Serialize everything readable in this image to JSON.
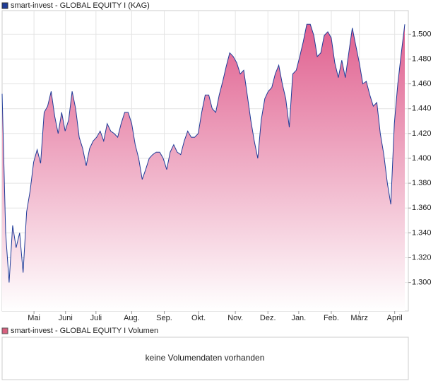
{
  "chart_data": {
    "type": "area",
    "series": [
      {
        "name": "smart-invest - GLOBAL EQUITY I (KAG)",
        "color": "#1f3c99",
        "fill": "#e0608f",
        "values": [
          1.452,
          1.34,
          1.3,
          1.346,
          1.328,
          1.34,
          1.308,
          1.357,
          1.374,
          1.397,
          1.407,
          1.396,
          1.437,
          1.442,
          1.454,
          1.434,
          1.42,
          1.437,
          1.422,
          1.431,
          1.454,
          1.44,
          1.417,
          1.408,
          1.394,
          1.408,
          1.414,
          1.417,
          1.422,
          1.414,
          1.428,
          1.422,
          1.42,
          1.417,
          1.428,
          1.437,
          1.437,
          1.428,
          1.411,
          1.4,
          1.383,
          1.391,
          1.4,
          1.403,
          1.405,
          1.405,
          1.4,
          1.391,
          1.405,
          1.411,
          1.405,
          1.403,
          1.414,
          1.422,
          1.417,
          1.417,
          1.42,
          1.437,
          1.451,
          1.451,
          1.44,
          1.437,
          1.451,
          1.462,
          1.474,
          1.485,
          1.482,
          1.477,
          1.468,
          1.471,
          1.451,
          1.431,
          1.414,
          1.4,
          1.431,
          1.448,
          1.454,
          1.457,
          1.468,
          1.475,
          1.46,
          1.448,
          1.425,
          1.468,
          1.471,
          1.482,
          1.494,
          1.508,
          1.508,
          1.499,
          1.482,
          1.485,
          1.499,
          1.502,
          1.497,
          1.477,
          1.465,
          1.479,
          1.465,
          1.485,
          1.505,
          1.491,
          1.477,
          1.46,
          1.462,
          1.451,
          1.442,
          1.445,
          1.42,
          1.403,
          1.38,
          1.363,
          1.428,
          1.46,
          1.485,
          1.508
        ]
      }
    ],
    "xlim": [
      0,
      116
    ],
    "xticks": [
      {
        "value": 9.1,
        "label": "Mai"
      },
      {
        "value": 18.1,
        "label": "Juni"
      },
      {
        "value": 26.8,
        "label": "Juli"
      },
      {
        "value": 37.0,
        "label": "Aug."
      },
      {
        "value": 46.3,
        "label": "Sep."
      },
      {
        "value": 56.1,
        "label": "Okt."
      },
      {
        "value": 66.6,
        "label": "Nov."
      },
      {
        "value": 75.9,
        "label": "Dez."
      },
      {
        "value": 84.7,
        "label": "Jan."
      },
      {
        "value": 94.0,
        "label": "Feb."
      },
      {
        "value": 102.0,
        "label": "März"
      },
      {
        "value": 112.1,
        "label": "April"
      }
    ],
    "ylim": [
      1.277,
      1.519
    ],
    "yticks": [
      {
        "value": 1.3,
        "label": "1.300"
      },
      {
        "value": 1.32,
        "label": "1.320"
      },
      {
        "value": 1.34,
        "label": "1.340"
      },
      {
        "value": 1.36,
        "label": "1.360"
      },
      {
        "value": 1.38,
        "label": "1.380"
      },
      {
        "value": 1.4,
        "label": "1.400"
      },
      {
        "value": 1.42,
        "label": "1.420"
      },
      {
        "value": 1.44,
        "label": "1.440"
      },
      {
        "value": 1.46,
        "label": "1.460"
      },
      {
        "value": 1.48,
        "label": "1.480"
      },
      {
        "value": 1.5,
        "label": "1.500"
      }
    ],
    "grid": true
  },
  "volume_panel": {
    "legend": "smart-invest - GLOBAL EQUITY I Volumen",
    "color": "#d9607f",
    "message": "keine Volumendaten vorhanden"
  }
}
